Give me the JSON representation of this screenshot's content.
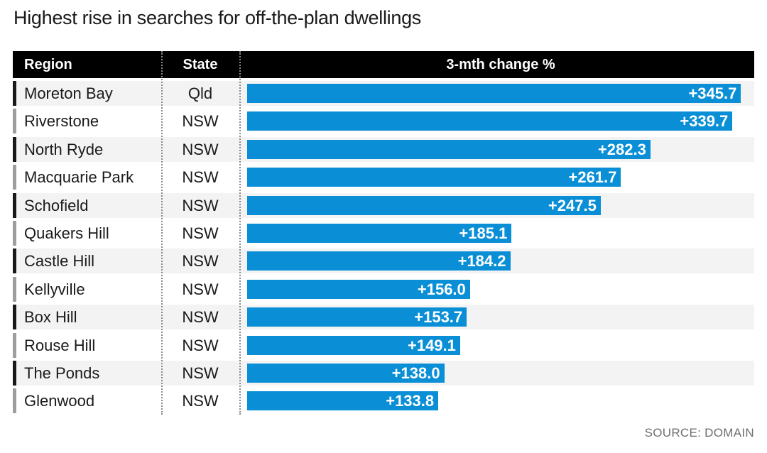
{
  "title": "Highest rise in searches for off-the-plan dwellings",
  "source": "SOURCE: DOMAIN",
  "colors": {
    "bar": "#0a8fd6",
    "header": "#000000"
  },
  "chart_data": {
    "type": "bar",
    "orientation": "horizontal",
    "title": "Highest rise in searches for off-the-plan dwellings",
    "columns": [
      "Region",
      "State",
      "3-mth change %"
    ],
    "categories": [
      "Moreton Bay",
      "Riverstone",
      "North Ryde",
      "Macquarie Park",
      "Schofield",
      "Quakers Hill",
      "Castle Hill",
      "Kellyville",
      "Box Hill",
      "Rouse Hill",
      "The Ponds",
      "Glenwood"
    ],
    "states": [
      "Qld",
      "NSW",
      "NSW",
      "NSW",
      "NSW",
      "NSW",
      "NSW",
      "NSW",
      "NSW",
      "NSW",
      "NSW",
      "NSW"
    ],
    "values": [
      345.7,
      339.7,
      282.3,
      261.7,
      247.5,
      185.1,
      184.2,
      156.0,
      153.7,
      149.1,
      138.0,
      133.8
    ],
    "value_labels": [
      "+345.7",
      "+339.7",
      "+282.3",
      "+261.7",
      "+247.5",
      "+185.1",
      "+184.2",
      "+156.0",
      "+153.7",
      "+149.1",
      "+138.0",
      "+133.8"
    ],
    "xlim": [
      0,
      350
    ],
    "source": "SOURCE: DOMAIN"
  }
}
